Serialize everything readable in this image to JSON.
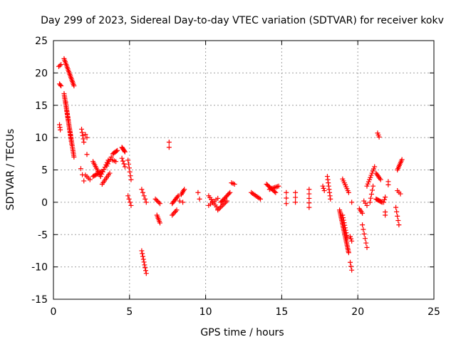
{
  "chart_data": {
    "type": "scatter",
    "title": "Day 299 of 2023, Sidereal Day-to-day VTEC variation (SDTVAR) for receiver kokv",
    "xlabel": "GPS time / hours",
    "ylabel": "SDTVAR / TECUs",
    "xlim": [
      0,
      25
    ],
    "ylim": [
      -15,
      25
    ],
    "xticks": [
      0,
      5,
      10,
      15,
      20,
      25
    ],
    "yticks": [
      -15,
      -10,
      -5,
      0,
      5,
      10,
      15,
      20,
      25
    ],
    "grid": true,
    "marker": "+",
    "color": "#ff0000",
    "segments": [
      {
        "x0": 0.35,
        "y0": 21.0,
        "x1": 0.5,
        "y1": 21.3,
        "n": 3
      },
      {
        "x0": 0.7,
        "y0": 22.2,
        "x1": 1.35,
        "y1": 18.0,
        "n": 20
      },
      {
        "x0": 0.4,
        "y0": 18.3,
        "x1": 0.5,
        "y1": 18.0,
        "n": 3
      },
      {
        "x0": 0.4,
        "y0": 12.0,
        "x1": 0.45,
        "y1": 11.2,
        "n": 3
      },
      {
        "x0": 0.7,
        "y0": 16.8,
        "x1": 1.35,
        "y1": 7.0,
        "n": 40
      },
      {
        "x0": 0.8,
        "y0": 15.5,
        "x1": 1.2,
        "y1": 9.0,
        "n": 15
      },
      {
        "x0": 1.85,
        "y0": 11.3,
        "x1": 2.0,
        "y1": 9.3,
        "n": 5
      },
      {
        "x0": 2.1,
        "y0": 10.5,
        "x1": 2.2,
        "y1": 10.0,
        "n": 2
      },
      {
        "x0": 1.8,
        "y0": 5.2,
        "x1": 2.0,
        "y1": 3.3,
        "n": 3
      },
      {
        "x0": 2.2,
        "y0": 7.4,
        "x1": 2.2,
        "y1": 7.3,
        "n": 1
      },
      {
        "x0": 2.1,
        "y0": 4.2,
        "x1": 2.4,
        "y1": 3.5,
        "n": 4
      },
      {
        "x0": 2.6,
        "y0": 6.3,
        "x1": 3.1,
        "y1": 4.0,
        "n": 10
      },
      {
        "x0": 2.6,
        "y0": 4.0,
        "x1": 3.2,
        "y1": 4.8,
        "n": 10
      },
      {
        "x0": 3.1,
        "y0": 4.0,
        "x1": 3.6,
        "y1": 6.5,
        "n": 8
      },
      {
        "x0": 3.2,
        "y0": 2.8,
        "x1": 3.7,
        "y1": 4.5,
        "n": 8
      },
      {
        "x0": 3.5,
        "y0": 5.6,
        "x1": 3.8,
        "y1": 7.0,
        "n": 5
      },
      {
        "x0": 3.9,
        "y0": 7.5,
        "x1": 4.2,
        "y1": 8.0,
        "n": 6
      },
      {
        "x0": 3.9,
        "y0": 6.5,
        "x1": 4.1,
        "y1": 6.3,
        "n": 3
      },
      {
        "x0": 4.5,
        "y0": 8.5,
        "x1": 4.7,
        "y1": 7.8,
        "n": 6
      },
      {
        "x0": 4.5,
        "y0": 6.8,
        "x1": 4.7,
        "y1": 5.5,
        "n": 4
      },
      {
        "x0": 4.9,
        "y0": 6.5,
        "x1": 5.1,
        "y1": 3.5,
        "n": 6
      },
      {
        "x0": 4.9,
        "y0": 1.0,
        "x1": 5.1,
        "y1": -0.5,
        "n": 4
      },
      {
        "x0": 5.8,
        "y0": 2.0,
        "x1": 6.1,
        "y1": 0.0,
        "n": 5
      },
      {
        "x0": 5.8,
        "y0": -7.5,
        "x1": 6.1,
        "y1": -11.0,
        "n": 9
      },
      {
        "x0": 6.7,
        "y0": 0.5,
        "x1": 7.0,
        "y1": -0.2,
        "n": 5
      },
      {
        "x0": 6.8,
        "y0": -2.0,
        "x1": 7.0,
        "y1": -3.2,
        "n": 6
      },
      {
        "x0": 7.6,
        "y0": 9.3,
        "x1": 7.6,
        "y1": 8.5,
        "n": 2
      },
      {
        "x0": 7.8,
        "y0": -0.2,
        "x1": 8.2,
        "y1": 1.0,
        "n": 8
      },
      {
        "x0": 7.8,
        "y0": -2.0,
        "x1": 8.1,
        "y1": -1.2,
        "n": 5
      },
      {
        "x0": 8.4,
        "y0": 1.2,
        "x1": 8.6,
        "y1": 2.0,
        "n": 5
      },
      {
        "x0": 8.3,
        "y0": 0.2,
        "x1": 8.5,
        "y1": 0.0,
        "n": 2
      },
      {
        "x0": 9.5,
        "y0": 1.5,
        "x1": 9.6,
        "y1": 0.5,
        "n": 2
      },
      {
        "x0": 10.2,
        "y0": 1.0,
        "x1": 10.8,
        "y1": -1.0,
        "n": 8
      },
      {
        "x0": 10.2,
        "y0": -0.5,
        "x1": 10.8,
        "y1": 0.6,
        "n": 6
      },
      {
        "x0": 11.0,
        "y0": 0.0,
        "x1": 11.6,
        "y1": 1.5,
        "n": 10
      },
      {
        "x0": 10.8,
        "y0": -1.2,
        "x1": 11.4,
        "y1": 0.2,
        "n": 8
      },
      {
        "x0": 11.7,
        "y0": 3.0,
        "x1": 11.9,
        "y1": 2.8,
        "n": 3
      },
      {
        "x0": 13.0,
        "y0": 1.5,
        "x1": 13.6,
        "y1": 0.5,
        "n": 8
      },
      {
        "x0": 14.0,
        "y0": 2.8,
        "x1": 14.6,
        "y1": 1.5,
        "n": 10
      },
      {
        "x0": 14.2,
        "y0": 2.0,
        "x1": 14.8,
        "y1": 2.5,
        "n": 8
      },
      {
        "x0": 15.3,
        "y0": 1.5,
        "x1": 15.3,
        "y1": -0.2,
        "n": 3
      },
      {
        "x0": 15.9,
        "y0": 1.5,
        "x1": 15.9,
        "y1": 0.0,
        "n": 3
      },
      {
        "x0": 16.8,
        "y0": 2.0,
        "x1": 16.8,
        "y1": -0.8,
        "n": 5
      },
      {
        "x0": 17.7,
        "y0": 2.5,
        "x1": 17.8,
        "y1": 1.8,
        "n": 3
      },
      {
        "x0": 18.0,
        "y0": 4.0,
        "x1": 18.2,
        "y1": 0.5,
        "n": 8
      },
      {
        "x0": 19.0,
        "y0": 3.6,
        "x1": 19.4,
        "y1": 1.5,
        "n": 8
      },
      {
        "x0": 18.8,
        "y0": -1.2,
        "x1": 19.4,
        "y1": -7.8,
        "n": 30
      },
      {
        "x0": 19.0,
        "y0": -2.0,
        "x1": 19.3,
        "y1": -5.5,
        "n": 10
      },
      {
        "x0": 19.6,
        "y0": 0.0,
        "x1": 19.6,
        "y1": 0.0,
        "n": 1
      },
      {
        "x0": 19.5,
        "y0": -5.3,
        "x1": 19.6,
        "y1": -6.0,
        "n": 3
      },
      {
        "x0": 19.5,
        "y0": -9.3,
        "x1": 19.6,
        "y1": -10.5,
        "n": 3
      },
      {
        "x0": 20.1,
        "y0": -1.0,
        "x1": 20.3,
        "y1": -1.7,
        "n": 4
      },
      {
        "x0": 20.3,
        "y0": -3.5,
        "x1": 20.6,
        "y1": -7.0,
        "n": 6
      },
      {
        "x0": 20.4,
        "y0": 0.2,
        "x1": 20.6,
        "y1": -0.5,
        "n": 3
      },
      {
        "x0": 20.6,
        "y0": 2.5,
        "x1": 21.1,
        "y1": 5.5,
        "n": 10
      },
      {
        "x0": 20.8,
        "y0": 0.0,
        "x1": 21.0,
        "y1": 2.5,
        "n": 5
      },
      {
        "x0": 21.2,
        "y0": 4.5,
        "x1": 21.5,
        "y1": 3.5,
        "n": 6
      },
      {
        "x0": 21.2,
        "y0": 0.5,
        "x1": 21.6,
        "y1": 0.0,
        "n": 8
      },
      {
        "x0": 21.3,
        "y0": 10.7,
        "x1": 21.4,
        "y1": 10.1,
        "n": 3
      },
      {
        "x0": 21.7,
        "y0": 0.0,
        "x1": 21.8,
        "y1": 0.8,
        "n": 3
      },
      {
        "x0": 21.8,
        "y0": -1.5,
        "x1": 21.8,
        "y1": -2.0,
        "n": 2
      },
      {
        "x0": 22.0,
        "y0": 3.2,
        "x1": 22.0,
        "y1": 2.7,
        "n": 2
      },
      {
        "x0": 22.6,
        "y0": 5.0,
        "x1": 22.9,
        "y1": 6.6,
        "n": 8
      },
      {
        "x0": 22.6,
        "y0": 1.8,
        "x1": 22.8,
        "y1": 1.3,
        "n": 3
      },
      {
        "x0": 22.5,
        "y0": -0.8,
        "x1": 22.7,
        "y1": -3.5,
        "n": 5
      }
    ]
  }
}
